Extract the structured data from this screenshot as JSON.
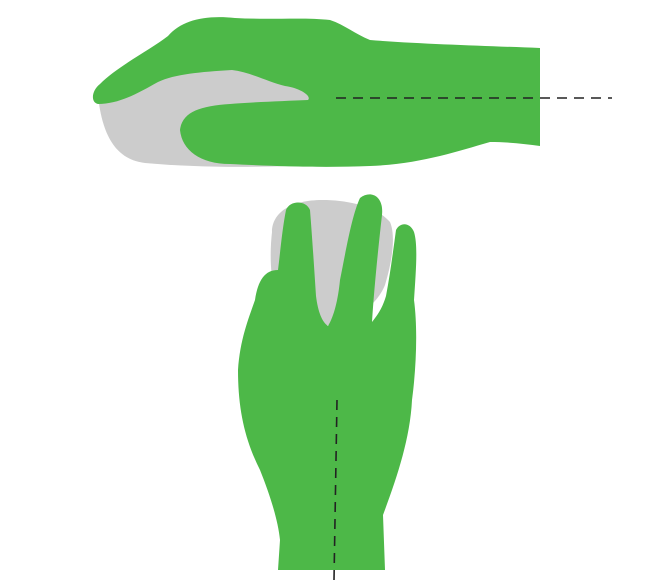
{
  "colors": {
    "background": "#ffffff",
    "hand": "#4db848",
    "mouse": "#cccccc",
    "guide_line": "#222222"
  },
  "views": [
    {
      "name": "side-view",
      "hand_icon": "hand-side-icon",
      "mouse_icon": "mouse-side-icon",
      "guide": "horizontal-axis-line"
    },
    {
      "name": "top-view",
      "hand_icon": "hand-top-icon",
      "mouse_icon": "mouse-top-icon",
      "guide": "vertical-axis-line"
    }
  ]
}
